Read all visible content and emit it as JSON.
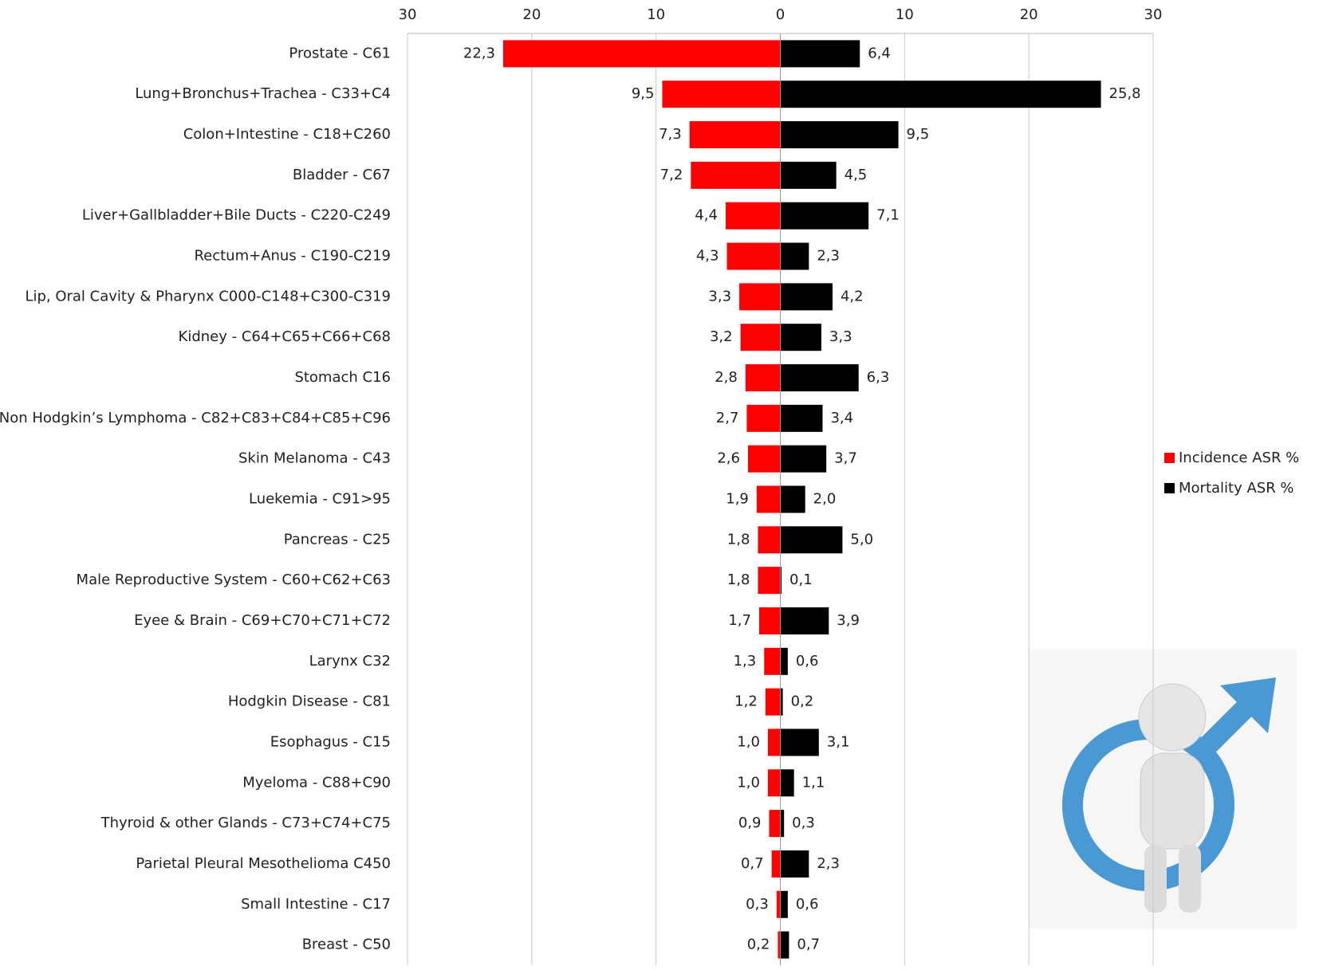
{
  "chart_data": {
    "type": "butterfly-bar",
    "categories": [
      "Prostate - C61",
      "Lung+Bronchus+Trachea - C33+C4",
      "Colon+Intestine - C18+C260",
      "Bladder - C67",
      "Liver+Gallbladder+Bile Ducts - C220-C249",
      "Rectum+Anus - C190-C219",
      "Lip, Oral Cavity & Pharynx C000-C148+C300-C319",
      "Kidney - C64+C65+C66+C68",
      "Stomach C16",
      "Non Hodgkin’s Lymphoma - C82+C83+C84+C85+C96",
      "Skin Melanoma - C43",
      "Luekemia - C91>95",
      "Pancreas - C25",
      "Male Reproductive System - C60+C62+C63",
      "Eyee & Brain - C69+C70+C71+C72",
      "Larynx C32",
      "Hodgkin Disease - C81",
      "Esophagus - C15",
      "Myeloma - C88+C90",
      "Thyroid & other Glands - C73+C74+C75",
      "Parietal Pleural Mesothelioma C450",
      "Small Intestine - C17",
      "Breast - C50"
    ],
    "series": [
      {
        "name": "Incidence ASR %",
        "color": "#ff0000",
        "values": [
          -22.3,
          -9.5,
          -7.3,
          -7.2,
          -4.4,
          -4.3,
          -3.3,
          -3.2,
          -2.8,
          -2.7,
          -2.6,
          -1.9,
          -1.8,
          -1.8,
          -1.7,
          -1.3,
          -1.2,
          -1.0,
          -1.0,
          -0.9,
          -0.7,
          -0.3,
          -0.2
        ],
        "value_labels": [
          "22,3",
          "9,5",
          "7,3",
          "7,2",
          "4,4",
          "4,3",
          "3,3",
          "3,2",
          "2,8",
          "2,7",
          "2,6",
          "1,9",
          "1,8",
          "1,8",
          "1,7",
          "1,3",
          "1,2",
          "1,0",
          "1,0",
          "0,9",
          "0,7",
          "0,3",
          "0,2"
        ]
      },
      {
        "name": "Mortality ASR %",
        "color": "#000000",
        "values": [
          6.4,
          25.8,
          9.5,
          4.5,
          7.1,
          2.3,
          4.2,
          3.3,
          6.3,
          3.4,
          3.7,
          2.0,
          5.0,
          0.1,
          3.9,
          0.6,
          0.2,
          3.1,
          1.1,
          0.3,
          2.3,
          0.6,
          0.7
        ],
        "value_labels": [
          "6,4",
          "25,8",
          "9,5",
          "4,5",
          "7,1",
          "2,3",
          "4,2",
          "3,3",
          "6,3",
          "3,4",
          "3,7",
          "2,0",
          "5,0",
          "0,1",
          "3,9",
          "0,6",
          "0,2",
          "3,1",
          "1,1",
          "0,3",
          "2,3",
          "0,6",
          "0,7"
        ]
      }
    ],
    "xlim": [
      -30,
      30
    ],
    "xticks": [
      {
        "value": -30,
        "label": "30"
      },
      {
        "value": -20,
        "label": "20"
      },
      {
        "value": -10,
        "label": "10"
      },
      0,
      10,
      20,
      30
    ],
    "grid": true,
    "legend": "right"
  }
}
